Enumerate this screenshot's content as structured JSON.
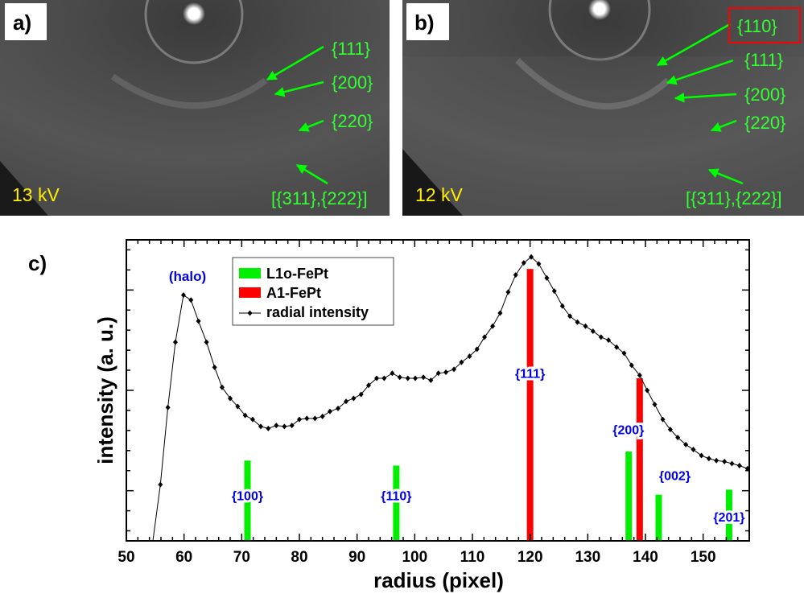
{
  "panels": [
    {
      "label": "a)",
      "voltage": "13 kV",
      "annotations": [
        "{111}",
        "{200}",
        "{220}",
        "[{311},{222}]"
      ]
    },
    {
      "label": "b)",
      "voltage": "12 kV",
      "annotations": [
        "{110}",
        "{111}",
        "{200}",
        "{220}",
        "[{311},{222}]"
      ],
      "highlighted_annotation": "{110}"
    }
  ],
  "colors": {
    "l10": "#00ee00",
    "a1": "#ff0000",
    "peak_label": "#0000ee",
    "annotation": "#33ff33",
    "voltage": "#ffee00"
  },
  "chart_data": {
    "panel_label": "c)",
    "type": "line",
    "xlabel": "radius  (pixel)",
    "ylabel": "intensity  (a. u.)",
    "xlim": [
      50,
      158
    ],
    "ylim": [
      0,
      3.0
    ],
    "xticks": [
      "50",
      "60",
      "70",
      "80",
      "90",
      "100",
      "110",
      "120",
      "130",
      "140",
      "150"
    ],
    "yticks_major": [
      0.5,
      1.5,
      2.5
    ],
    "grid": false,
    "legend_position": "top-center",
    "legend": [
      "L1o-FePt",
      "A1-FePt",
      "radial intensity"
    ],
    "halo_label": "(halo)",
    "series": [
      {
        "name": "radial intensity",
        "type": "line-markers",
        "x": [
          54.6,
          55.9,
          57.2,
          58.5,
          59.9,
          61.2,
          62.5,
          63.9,
          65.3,
          66.6,
          68.0,
          69.3,
          70.6,
          71.9,
          73.3,
          74.6,
          76.0,
          77.4,
          78.7,
          80.0,
          81.3,
          82.7,
          84.0,
          85.3,
          86.7,
          88.1,
          89.4,
          90.7,
          92.0,
          93.4,
          94.7,
          96.1,
          97.4,
          98.8,
          100.1,
          101.5,
          102.8,
          104.1,
          105.4,
          106.8,
          108.1,
          109.5,
          110.8,
          112.1,
          113.5,
          114.8,
          116.2,
          117.5,
          118.9,
          120.2,
          121.5,
          122.9,
          124.2,
          125.6,
          126.9,
          128.2,
          129.6,
          130.9,
          132.3,
          133.6,
          135.0,
          136.3,
          137.6,
          139.0,
          140.3,
          141.6,
          143.0,
          144.3,
          145.6,
          147.0,
          148.3,
          149.7,
          151.0,
          152.3,
          153.7,
          155.0,
          156.3,
          157.7
        ],
        "y": [
          0.0,
          0.56,
          1.33,
          1.98,
          2.45,
          2.4,
          2.19,
          1.98,
          1.73,
          1.53,
          1.42,
          1.34,
          1.25,
          1.21,
          1.14,
          1.12,
          1.15,
          1.14,
          1.15,
          1.21,
          1.22,
          1.22,
          1.24,
          1.29,
          1.32,
          1.39,
          1.42,
          1.46,
          1.55,
          1.62,
          1.62,
          1.67,
          1.63,
          1.62,
          1.62,
          1.63,
          1.6,
          1.67,
          1.68,
          1.71,
          1.78,
          1.84,
          1.91,
          2.03,
          2.14,
          2.27,
          2.48,
          2.65,
          2.77,
          2.83,
          2.76,
          2.62,
          2.49,
          2.34,
          2.24,
          2.18,
          2.14,
          2.09,
          2.03,
          2.0,
          1.93,
          1.87,
          1.75,
          1.65,
          1.5,
          1.36,
          1.21,
          1.11,
          1.03,
          0.96,
          0.91,
          0.85,
          0.82,
          0.8,
          0.79,
          0.77,
          0.75,
          0.72
        ]
      },
      {
        "name": "L1o-FePt",
        "type": "bar",
        "x": [
          71.0,
          96.8,
          137.1,
          142.3,
          154.5
        ],
        "y": [
          0.8,
          0.75,
          0.89,
          0.46,
          0.51
        ],
        "labels": [
          "{100}",
          "{110}",
          "",
          "{002}",
          "{201}"
        ],
        "label_y": [
          0.46,
          0.46,
          0,
          0.66,
          0.25
        ]
      },
      {
        "name": "A1-FePt",
        "type": "bar",
        "x": [
          120.0,
          139.0
        ],
        "y": [
          2.71,
          1.62
        ],
        "labels": [
          "{111}",
          "{200}"
        ],
        "label_y": [
          1.68,
          1.12
        ]
      }
    ]
  }
}
